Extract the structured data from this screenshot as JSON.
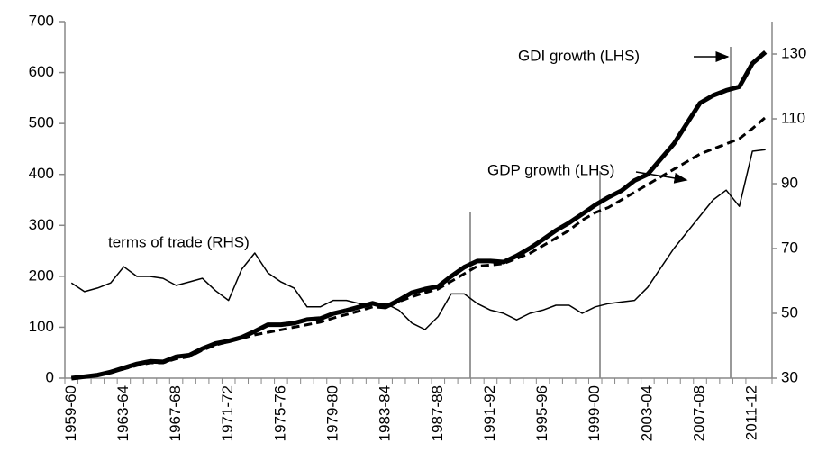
{
  "chart_data": {
    "type": "line",
    "categories": [
      "1959-60",
      null,
      null,
      null,
      "1963-64",
      null,
      null,
      null,
      "1967-68",
      null,
      null,
      null,
      "1971-72",
      null,
      null,
      null,
      "1975-76",
      null,
      null,
      null,
      "1979-80",
      null,
      null,
      null,
      "1983-84",
      null,
      null,
      null,
      "1987-88",
      null,
      null,
      null,
      "1991-92",
      null,
      null,
      null,
      "1995-96",
      null,
      null,
      null,
      "1999-00",
      null,
      null,
      null,
      "2003-04",
      null,
      null,
      null,
      "2007-08",
      null,
      null,
      null,
      "2011-12",
      null
    ],
    "ylim": [
      0,
      700
    ],
    "yticks": [
      0,
      100,
      200,
      300,
      400,
      500,
      600,
      700
    ],
    "y2lim": [
      30,
      140
    ],
    "y2ticks": [
      30,
      50,
      70,
      90,
      110,
      130
    ],
    "series": [
      {
        "name": "GDI growth (LHS)",
        "color": "#000000",
        "style": "thick",
        "values": [
          0,
          3,
          6,
          12,
          20,
          28,
          33,
          32,
          42,
          45,
          58,
          68,
          73,
          80,
          92,
          105,
          105,
          108,
          115,
          117,
          127,
          133,
          140,
          147,
          140,
          153,
          168,
          175,
          180,
          200,
          218,
          230,
          230,
          228,
          240,
          255,
          272,
          290,
          305,
          322,
          340,
          355,
          368,
          388,
          400,
          430,
          460,
          500,
          540,
          555,
          565,
          572,
          618,
          640
        ]
      },
      {
        "name": "GDP growth (LHS)",
        "color": "#000000",
        "style": "dashed",
        "values": [
          0,
          3,
          6,
          11,
          18,
          25,
          30,
          30,
          38,
          42,
          55,
          65,
          72,
          78,
          85,
          90,
          95,
          100,
          105,
          110,
          118,
          125,
          132,
          140,
          138,
          150,
          160,
          168,
          175,
          190,
          205,
          220,
          222,
          225,
          235,
          245,
          260,
          275,
          290,
          310,
          325,
          335,
          350,
          365,
          380,
          395,
          410,
          425,
          440,
          450,
          460,
          470,
          490,
          512
        ]
      },
      {
        "name": "terms of trade (RHS)",
        "color": "#000000",
        "style": "thin",
        "axis": "y2",
        "values": [
          59.4,
          56.7,
          57.8,
          59.4,
          64.4,
          61.4,
          61.4,
          60.8,
          58.6,
          59.7,
          60.8,
          57,
          54,
          63.6,
          68.6,
          62.5,
          59.7,
          57.8,
          52,
          52,
          54,
          54,
          53,
          53,
          53,
          51,
          47,
          45,
          49,
          56,
          56,
          53,
          51,
          50,
          48,
          50,
          51,
          52.5,
          52.5,
          50,
          52,
          53,
          53.5,
          54,
          58,
          64,
          70,
          75,
          80,
          85,
          88,
          83,
          100,
          100.5
        ]
      }
    ]
  }
}
